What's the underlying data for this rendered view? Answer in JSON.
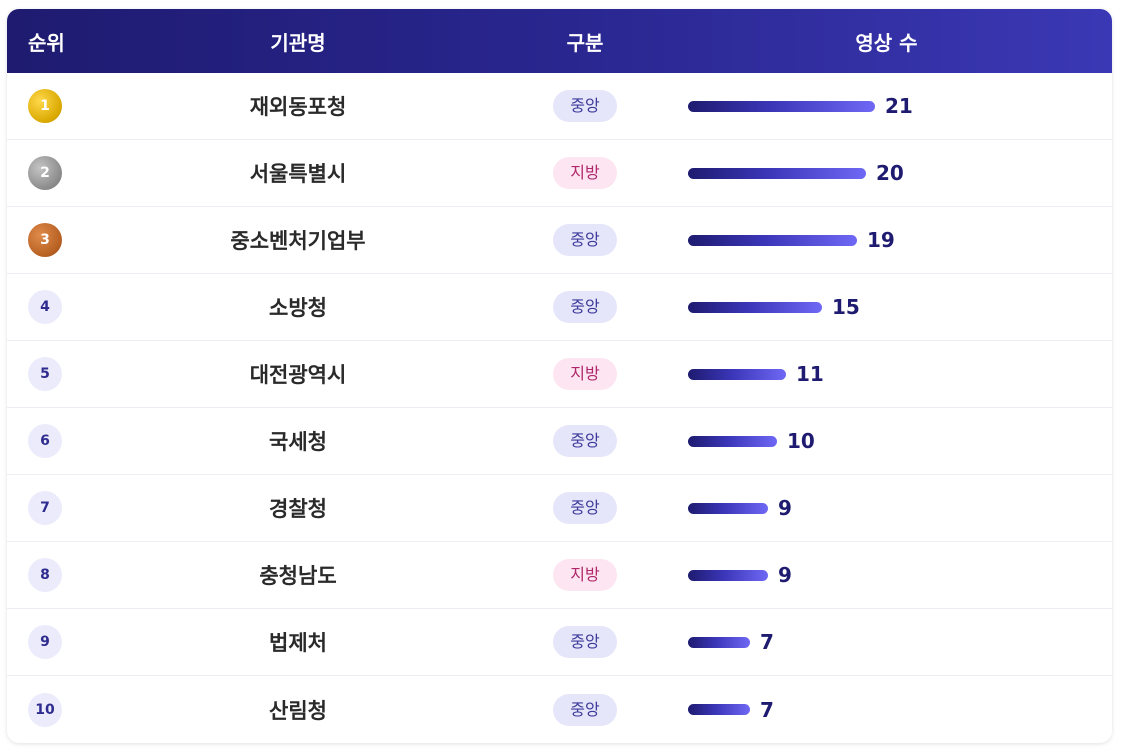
{
  "header": {
    "rank": "순위",
    "name": "기관명",
    "type": "구분",
    "count": "영상 수"
  },
  "max_value": 21,
  "colors": {
    "header_start": "#1e1b70",
    "header_end": "#3b38b5",
    "central_pill_bg": "#e6e6fb",
    "central_pill_text": "#3d3a9a",
    "local_pill_bg": "#fde6f1",
    "local_pill_text": "#b0266a",
    "bar_start": "#1e1b70",
    "bar_end": "#6f68f5",
    "gold": "#d9a800",
    "silver": "#8a8a8a",
    "bronze": "#b55f22"
  },
  "rows": [
    {
      "rank": "1",
      "name": "재외동포청",
      "type": "중앙",
      "type_key": "central",
      "value": 21,
      "value_label": "21",
      "medal": "gold"
    },
    {
      "rank": "2",
      "name": "서울특별시",
      "type": "지방",
      "type_key": "local",
      "value": 20,
      "value_label": "20",
      "medal": "silver"
    },
    {
      "rank": "3",
      "name": "중소벤처기업부",
      "type": "중앙",
      "type_key": "central",
      "value": 19,
      "value_label": "19",
      "medal": "bronze"
    },
    {
      "rank": "4",
      "name": "소방청",
      "type": "중앙",
      "type_key": "central",
      "value": 15,
      "value_label": "15",
      "medal": "plain"
    },
    {
      "rank": "5",
      "name": "대전광역시",
      "type": "지방",
      "type_key": "local",
      "value": 11,
      "value_label": "11",
      "medal": "plain"
    },
    {
      "rank": "6",
      "name": "국세청",
      "type": "중앙",
      "type_key": "central",
      "value": 10,
      "value_label": "10",
      "medal": "plain"
    },
    {
      "rank": "7",
      "name": "경찰청",
      "type": "중앙",
      "type_key": "central",
      "value": 9,
      "value_label": "9",
      "medal": "plain"
    },
    {
      "rank": "8",
      "name": "충청남도",
      "type": "지방",
      "type_key": "local",
      "value": 9,
      "value_label": "9",
      "medal": "plain"
    },
    {
      "rank": "9",
      "name": "법제처",
      "type": "중앙",
      "type_key": "central",
      "value": 7,
      "value_label": "7",
      "medal": "plain"
    },
    {
      "rank": "10",
      "name": "산림청",
      "type": "중앙",
      "type_key": "central",
      "value": 7,
      "value_label": "7",
      "medal": "plain"
    }
  ]
}
